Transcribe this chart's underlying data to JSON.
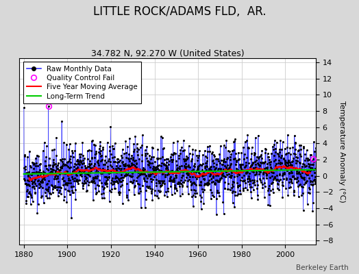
{
  "title": "LITTLE ROCK/ADAMS FLD,  AR.",
  "subtitle": "34.782 N, 92.270 W (United States)",
  "ylabel": "Temperature Anomaly (°C)",
  "watermark": "Berkeley Earth",
  "xlim": [
    1878,
    2014
  ],
  "ylim": [
    -8.5,
    14.5
  ],
  "yticks": [
    -8,
    -6,
    -4,
    -2,
    0,
    2,
    4,
    6,
    8,
    10,
    12,
    14
  ],
  "xticks": [
    1880,
    1900,
    1920,
    1940,
    1960,
    1980,
    2000
  ],
  "year_start": 1880,
  "year_end": 2013,
  "seed": 42,
  "noise_std": 1.7,
  "raw_line_color": "#3333ff",
  "stem_color": "#8888ff",
  "dot_color": "#000000",
  "moving_avg_color": "#ff0000",
  "trend_color": "#00cc00",
  "qc_color": "#ff00ff",
  "plot_bg": "#ffffff",
  "fig_bg": "#d8d8d8",
  "title_fontsize": 12,
  "subtitle_fontsize": 9,
  "axis_fontsize": 8,
  "legend_fontsize": 7.5
}
